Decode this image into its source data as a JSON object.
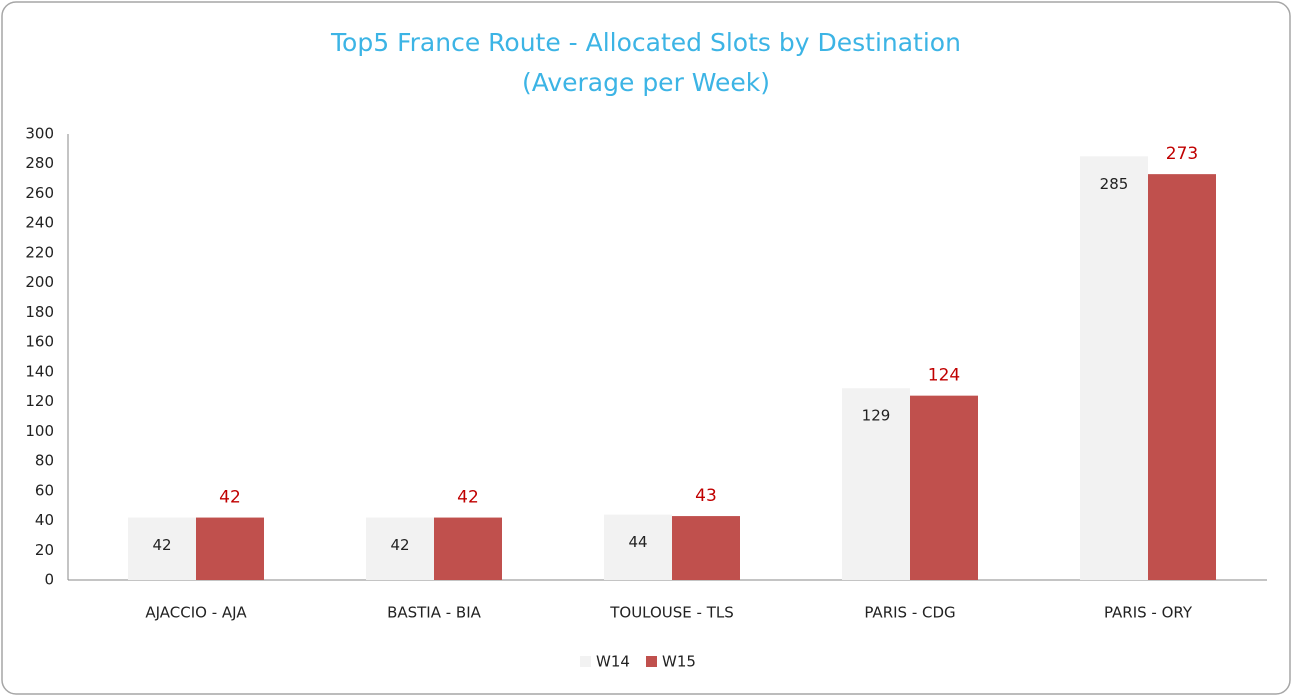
{
  "chart_data": {
    "type": "bar",
    "title": "Top5 France Route - Allocated Slots by Destination",
    "subtitle": "(Average per Week)",
    "categories": [
      "AJACCIO - AJA",
      "BASTIA - BIA",
      "TOULOUSE - TLS",
      "PARIS - CDG",
      "PARIS - ORY"
    ],
    "series": [
      {
        "name": "W14",
        "color": "#f2f2f2",
        "label_color": "#222222",
        "values": [
          42,
          42,
          44,
          129,
          285
        ]
      },
      {
        "name": "W15",
        "color": "#c0504d",
        "label_color": "#c00000",
        "values": [
          42,
          42,
          43,
          124,
          273
        ]
      }
    ],
    "ylim": [
      0,
      300
    ],
    "yticks": [
      0,
      20,
      40,
      60,
      80,
      100,
      120,
      140,
      160,
      180,
      200,
      220,
      240,
      260,
      280,
      300
    ],
    "grid": false,
    "legend": "bottom"
  }
}
